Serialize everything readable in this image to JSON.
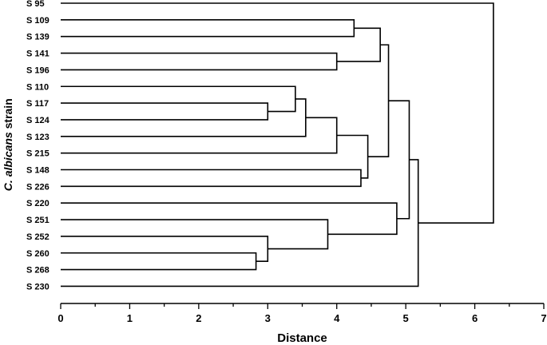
{
  "chart_data": {
    "type": "dendrogram",
    "xlabel": "Distance",
    "ylabel_italic": "C. albicans",
    "ylabel_rest": " strain",
    "xlim": [
      0,
      7
    ],
    "major_ticks": [
      0,
      1,
      2,
      3,
      4,
      5,
      6,
      7
    ],
    "tick_labels": [
      "0",
      "1",
      "2",
      "3",
      "4",
      "5",
      "6",
      "7"
    ],
    "leaves": [
      "S 95",
      "S 109",
      "S 139",
      "S 141",
      "S 196",
      "S 110",
      "S 117",
      "S 124",
      "S 123",
      "S 215",
      "S 148",
      "S 226",
      "S 220",
      "S 251",
      "S 252",
      "S 260",
      "S 268",
      "S 230"
    ],
    "merges": [
      {
        "id": "m1",
        "left": "S 109",
        "right": "S 139",
        "height": 4.25
      },
      {
        "id": "m2",
        "left": "S 141",
        "right": "S 196",
        "height": 4.0
      },
      {
        "id": "m3",
        "left": "m1",
        "right": "m2",
        "height": 4.63
      },
      {
        "id": "m4",
        "left": "S 117",
        "right": "S 124",
        "height": 3.0
      },
      {
        "id": "m5",
        "left": "S 110",
        "right": "m4",
        "height": 3.4
      },
      {
        "id": "m6",
        "left": "m5",
        "right": "S 123",
        "height": 3.55
      },
      {
        "id": "m7",
        "left": "m6",
        "right": "S 215",
        "height": 4.0
      },
      {
        "id": "m8",
        "left": "S 148",
        "right": "S 226",
        "height": 4.35
      },
      {
        "id": "m9",
        "left": "m7",
        "right": "m8",
        "height": 4.45
      },
      {
        "id": "m10",
        "left": "m3",
        "right": "m9",
        "height": 4.75
      },
      {
        "id": "m11",
        "left": "S 260",
        "right": "S 268",
        "height": 2.83
      },
      {
        "id": "m12",
        "left": "S 252",
        "right": "m11",
        "height": 3.0
      },
      {
        "id": "m13",
        "left": "S 251",
        "right": "m12",
        "height": 3.87
      },
      {
        "id": "m14",
        "left": "S 220",
        "right": "m13",
        "height": 4.87
      },
      {
        "id": "m15",
        "left": "m10",
        "right": "m14",
        "height": 5.05
      },
      {
        "id": "m16",
        "left": "m15",
        "right": "S 230",
        "height": 5.18
      },
      {
        "id": "m17",
        "left": "S 95",
        "right": "m16",
        "height": 6.27
      }
    ]
  }
}
